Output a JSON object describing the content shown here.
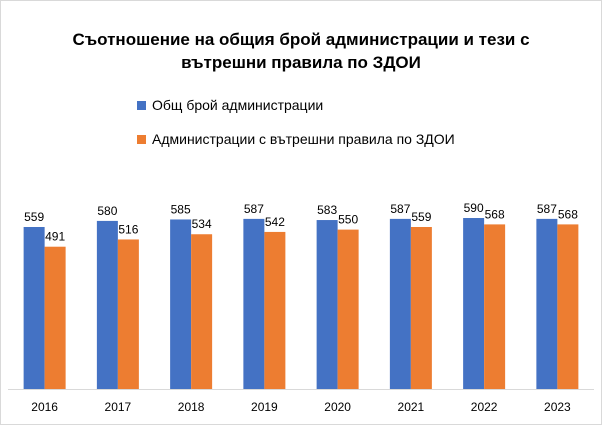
{
  "chart_data": {
    "type": "bar",
    "title_line1": "Съотношение на общия брой администрации и тези с",
    "title_line2": "вътрешни правила по ЗДОИ",
    "categories": [
      "2016",
      "2017",
      "2018",
      "2019",
      "2020",
      "2021",
      "2022",
      "2023"
    ],
    "series": [
      {
        "name": "Общ брой администрации",
        "color": "#4472C4",
        "values": [
          559,
          580,
          585,
          587,
          583,
          587,
          590,
          587
        ]
      },
      {
        "name": "Администрации  с вътрешни правила по ЗДОИ",
        "color": "#ED7D31",
        "values": [
          491,
          516,
          534,
          542,
          550,
          559,
          568,
          568
        ]
      }
    ],
    "xlabel": "",
    "ylabel": "",
    "ylim": [
      0,
      700
    ],
    "grid": false,
    "legend_position": "top"
  }
}
